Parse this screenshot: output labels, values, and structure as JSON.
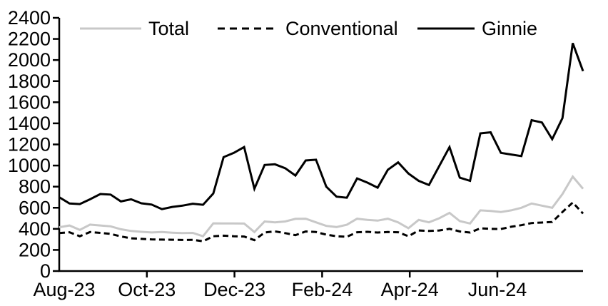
{
  "chart_data": {
    "type": "line",
    "title": "",
    "xlabel": "",
    "ylabel": "",
    "ylim": [
      0,
      2400
    ],
    "y_tick_step": 200,
    "y_tick_labels": [
      "0",
      "200",
      "400",
      "600",
      "800",
      "1000",
      "1200",
      "1400",
      "1600",
      "1800",
      "2000",
      "2200",
      "2400"
    ],
    "x_tick_labels": [
      "Aug-23",
      "Oct-23",
      "Dec-23",
      "Feb-24",
      "Apr-24",
      "Jun-24"
    ],
    "x_frequency": "weekly",
    "grid": false,
    "legend_position": "top-inside",
    "series": [
      {
        "name": "Total",
        "color": "#c8c8c8",
        "dash": "solid",
        "values": [
          415,
          432,
          390,
          440,
          432,
          424,
          396,
          380,
          372,
          366,
          370,
          364,
          360,
          362,
          330,
          452,
          451,
          451,
          450,
          370,
          470,
          462,
          470,
          495,
          496,
          462,
          428,
          417,
          439,
          496,
          485,
          478,
          496,
          462,
          406,
          485,
          462,
          500,
          552,
          473,
          451,
          575,
          570,
          560,
          575,
          600,
          640,
          620,
          600,
          730,
          895,
          780
        ]
      },
      {
        "name": "Conventional",
        "color": "#000000",
        "dash": "dashed",
        "values": [
          360,
          368,
          330,
          370,
          362,
          352,
          328,
          310,
          305,
          300,
          298,
          297,
          295,
          296,
          282,
          330,
          335,
          330,
          327,
          293,
          365,
          376,
          360,
          340,
          375,
          370,
          345,
          330,
          325,
          368,
          372,
          365,
          370,
          368,
          330,
          385,
          380,
          385,
          400,
          375,
          365,
          405,
          400,
          398,
          420,
          435,
          455,
          460,
          465,
          560,
          650,
          545
        ]
      },
      {
        "name": "Ginnie",
        "color": "#000000",
        "dash": "solid",
        "values": [
          700,
          640,
          635,
          680,
          730,
          725,
          660,
          680,
          642,
          630,
          587,
          608,
          620,
          638,
          628,
          735,
          1080,
          1120,
          1175,
          780,
          1005,
          1012,
          975,
          905,
          1048,
          1055,
          800,
          705,
          695,
          878,
          838,
          790,
          960,
          1030,
          925,
          855,
          815,
          995,
          1175,
          885,
          855,
          1305,
          1315,
          1120,
          1105,
          1090,
          1430,
          1408,
          1250,
          1450,
          2160,
          1895
        ]
      }
    ]
  }
}
